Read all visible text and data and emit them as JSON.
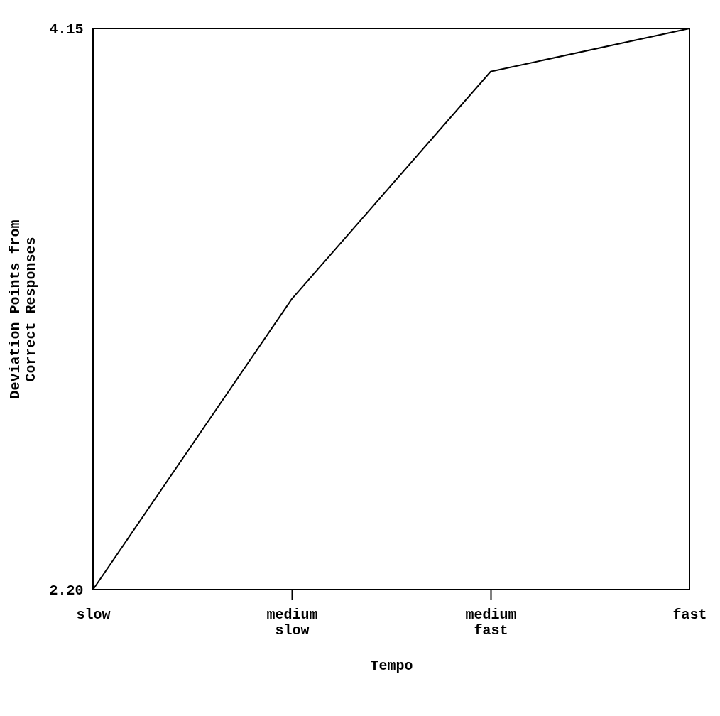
{
  "chart_data": {
    "type": "line",
    "xlabel": "Tempo",
    "ylabel": "Deviation Points from Correct Responses",
    "categories": [
      "slow",
      "medium slow",
      "medium fast",
      "fast"
    ],
    "series": [
      {
        "color": "#000000",
        "values": [
          2.2,
          3.21,
          4.0,
          4.15
        ]
      }
    ],
    "ylim": [
      2.2,
      4.15
    ],
    "yticks": [
      {
        "value": 2.2,
        "label": "2.20"
      },
      {
        "value": 4.15,
        "label": "4.15"
      }
    ],
    "grid": false,
    "legend": false,
    "marker": "none",
    "line_style": "solid"
  }
}
